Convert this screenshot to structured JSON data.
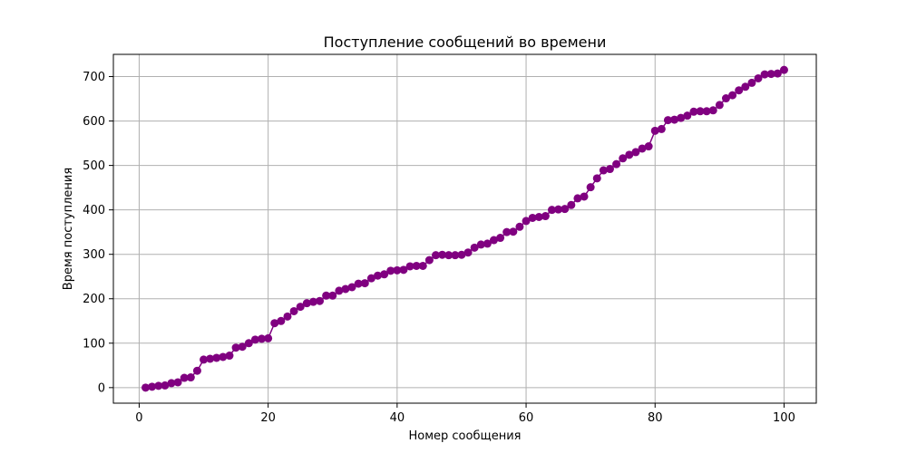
{
  "colors": {
    "series": "#800080",
    "grid": "#b0b0b0",
    "axes": "#000000"
  },
  "chart_data": {
    "type": "line",
    "title": "Поступление сообщений во времени",
    "xlabel": "Номер сообщения",
    "ylabel": "Время поступления",
    "xlim": [
      -4,
      105
    ],
    "ylim": [
      -35,
      750
    ],
    "xticks": [
      0,
      20,
      40,
      60,
      80,
      100
    ],
    "yticks": [
      0,
      100,
      200,
      300,
      400,
      500,
      600,
      700
    ],
    "grid": true,
    "markers": true,
    "x": [
      1,
      2,
      3,
      4,
      5,
      6,
      7,
      8,
      9,
      10,
      11,
      12,
      13,
      14,
      15,
      16,
      17,
      18,
      19,
      20,
      21,
      22,
      23,
      24,
      25,
      26,
      27,
      28,
      29,
      30,
      31,
      32,
      33,
      34,
      35,
      36,
      37,
      38,
      39,
      40,
      41,
      42,
      43,
      44,
      45,
      46,
      47,
      48,
      49,
      50,
      51,
      52,
      53,
      54,
      55,
      56,
      57,
      58,
      59,
      60,
      61,
      62,
      63,
      64,
      65,
      66,
      67,
      68,
      69,
      70,
      71,
      72,
      73,
      74,
      75,
      76,
      77,
      78,
      79,
      80,
      81,
      82,
      83,
      84,
      85,
      86,
      87,
      88,
      89,
      90,
      91,
      92,
      93,
      94,
      95,
      96,
      97,
      98,
      99,
      100
    ],
    "y": [
      0,
      2,
      4,
      5,
      10,
      12,
      22,
      23,
      38,
      63,
      65,
      67,
      69,
      72,
      90,
      92,
      100,
      108,
      110,
      111,
      145,
      150,
      160,
      172,
      182,
      190,
      193,
      195,
      207,
      207,
      218,
      222,
      226,
      234,
      235,
      246,
      252,
      255,
      263,
      264,
      265,
      273,
      274,
      274,
      287,
      298,
      299,
      298,
      298,
      299,
      304,
      315,
      322,
      324,
      332,
      337,
      350,
      351,
      362,
      375,
      382,
      384,
      386,
      400,
      401,
      402,
      411,
      426,
      430,
      451,
      471,
      489,
      492,
      503,
      516,
      524,
      530,
      538,
      543,
      578,
      582,
      602,
      603,
      607,
      612,
      621,
      622,
      622,
      624,
      636,
      651,
      658,
      669,
      677,
      686,
      696,
      705,
      706,
      707,
      715
    ]
  }
}
